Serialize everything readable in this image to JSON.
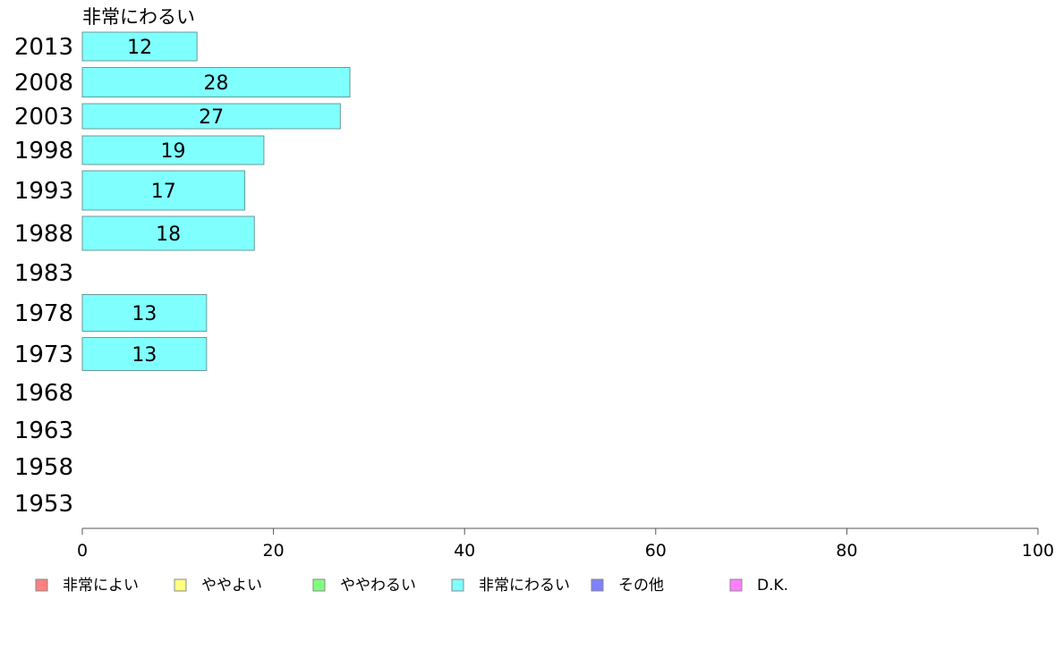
{
  "chart_data": {
    "type": "bar",
    "orientation": "horizontal",
    "series_title": "非常にわるい",
    "categories": [
      "2013",
      "2008",
      "2003",
      "1998",
      "1993",
      "1988",
      "1983",
      "1978",
      "1973",
      "1968",
      "1963",
      "1958",
      "1953"
    ],
    "series": [
      {
        "name": "非常にわるい",
        "color": "#80ffff",
        "values": [
          12,
          28,
          27,
          19,
          17,
          18,
          null,
          13,
          13,
          null,
          null,
          null,
          null
        ]
      }
    ],
    "xlim": [
      0,
      100
    ],
    "xticks": [
      0,
      20,
      40,
      60,
      80,
      100
    ],
    "legend": {
      "position": "bottom",
      "items": [
        {
          "label": "非常によい",
          "color": "#ff8080"
        },
        {
          "label": "ややよい",
          "color": "#ffff80"
        },
        {
          "label": "ややわるい",
          "color": "#80ff80"
        },
        {
          "label": "非常にわるい",
          "color": "#80ffff"
        },
        {
          "label": "その他",
          "color": "#8080ff"
        },
        {
          "label": "D.K.",
          "color": "#ff80ff"
        }
      ]
    }
  }
}
